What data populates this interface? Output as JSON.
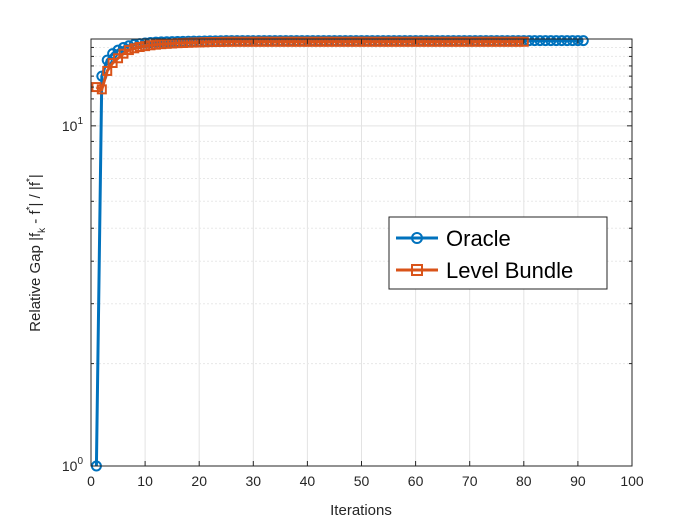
{
  "chart_data": {
    "type": "line",
    "xlabel": "Iterations",
    "ylabel": {
      "main": "Relative Gap |f",
      "sub_k": "k",
      "mid": " - f",
      "sup_star1": "*",
      "end": "| / |f",
      "sup_star2": "*",
      "close": "|"
    },
    "xlim": [
      0,
      100
    ],
    "ylim": [
      1,
      18
    ],
    "yscale": "log",
    "xticks": [
      "0",
      "10",
      "20",
      "30",
      "40",
      "50",
      "60",
      "70",
      "80",
      "90",
      "100"
    ],
    "yticks": [
      {
        "base": "10",
        "exp": "0",
        "value": 1
      },
      {
        "base": "10",
        "exp": "1",
        "value": 10
      }
    ],
    "grid": true,
    "legend_position": "right-middle",
    "series": [
      {
        "name": "Oracle",
        "color": "#0072BD",
        "marker": "circle",
        "count": 91,
        "values": [
          1.0,
          14.0,
          15.6,
          16.3,
          16.7,
          17.0,
          17.2,
          17.35,
          17.45,
          17.52,
          17.58,
          17.62,
          17.65,
          17.67,
          17.69,
          17.7,
          17.72,
          17.73,
          17.74,
          17.75,
          17.76,
          17.77,
          17.78,
          17.79,
          17.8
        ]
      },
      {
        "name": "Level Bundle",
        "color": "#D95319",
        "marker": "square",
        "count": 80,
        "values": [
          13.0,
          12.8,
          14.5,
          15.3,
          15.8,
          16.3,
          16.7,
          16.9,
          17.05,
          17.15,
          17.25,
          17.32,
          17.38,
          17.42,
          17.46,
          17.5,
          17.52,
          17.55,
          17.57,
          17.59,
          17.61,
          17.63,
          17.64,
          17.65,
          17.66,
          17.67
        ]
      }
    ]
  }
}
